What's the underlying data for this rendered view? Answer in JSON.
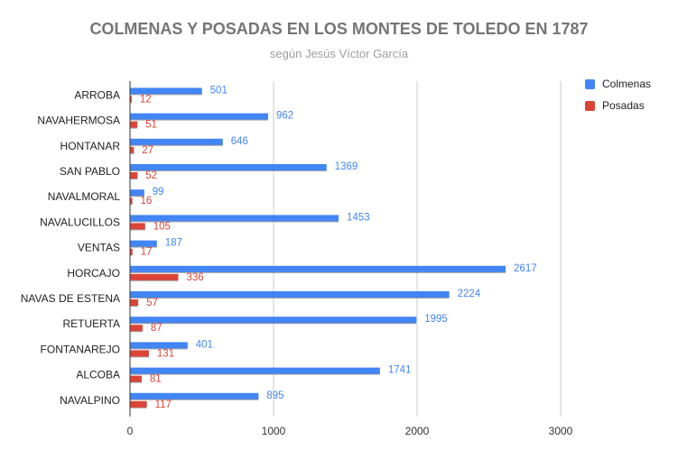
{
  "chart_data": {
    "type": "bar",
    "orientation": "horizontal",
    "title": "COLMENAS Y POSADAS EN LOS MONTES DE TOLEDO EN 1787",
    "subtitle": "según Jesús Víctor García",
    "categories": [
      "ARROBA",
      "NAVAHERMOSA",
      "HONTANAR",
      "SAN PABLO",
      "NAVALMORAL",
      "NAVALUCILLOS",
      "VENTAS",
      "HORCAJO",
      "NAVAS DE ESTENA",
      "RETUERTA",
      "FONTANAREJO",
      "ALCOBA",
      "NAVALPINO"
    ],
    "series": [
      {
        "name": "Colmenas",
        "color": "#4285f4",
        "label_color": "#4285f4",
        "values": [
          501,
          962,
          646,
          1369,
          99,
          1453,
          187,
          2617,
          2224,
          1995,
          401,
          1741,
          895
        ]
      },
      {
        "name": "Posadas",
        "color": "#db4437",
        "label_color": "#db4437",
        "values": [
          12,
          51,
          27,
          52,
          16,
          105,
          17,
          336,
          57,
          87,
          131,
          81,
          117
        ]
      }
    ],
    "xlim": [
      0,
      3000
    ],
    "xticks": [
      0,
      1000,
      2000,
      3000
    ],
    "grid": true,
    "legend_position": "right"
  }
}
